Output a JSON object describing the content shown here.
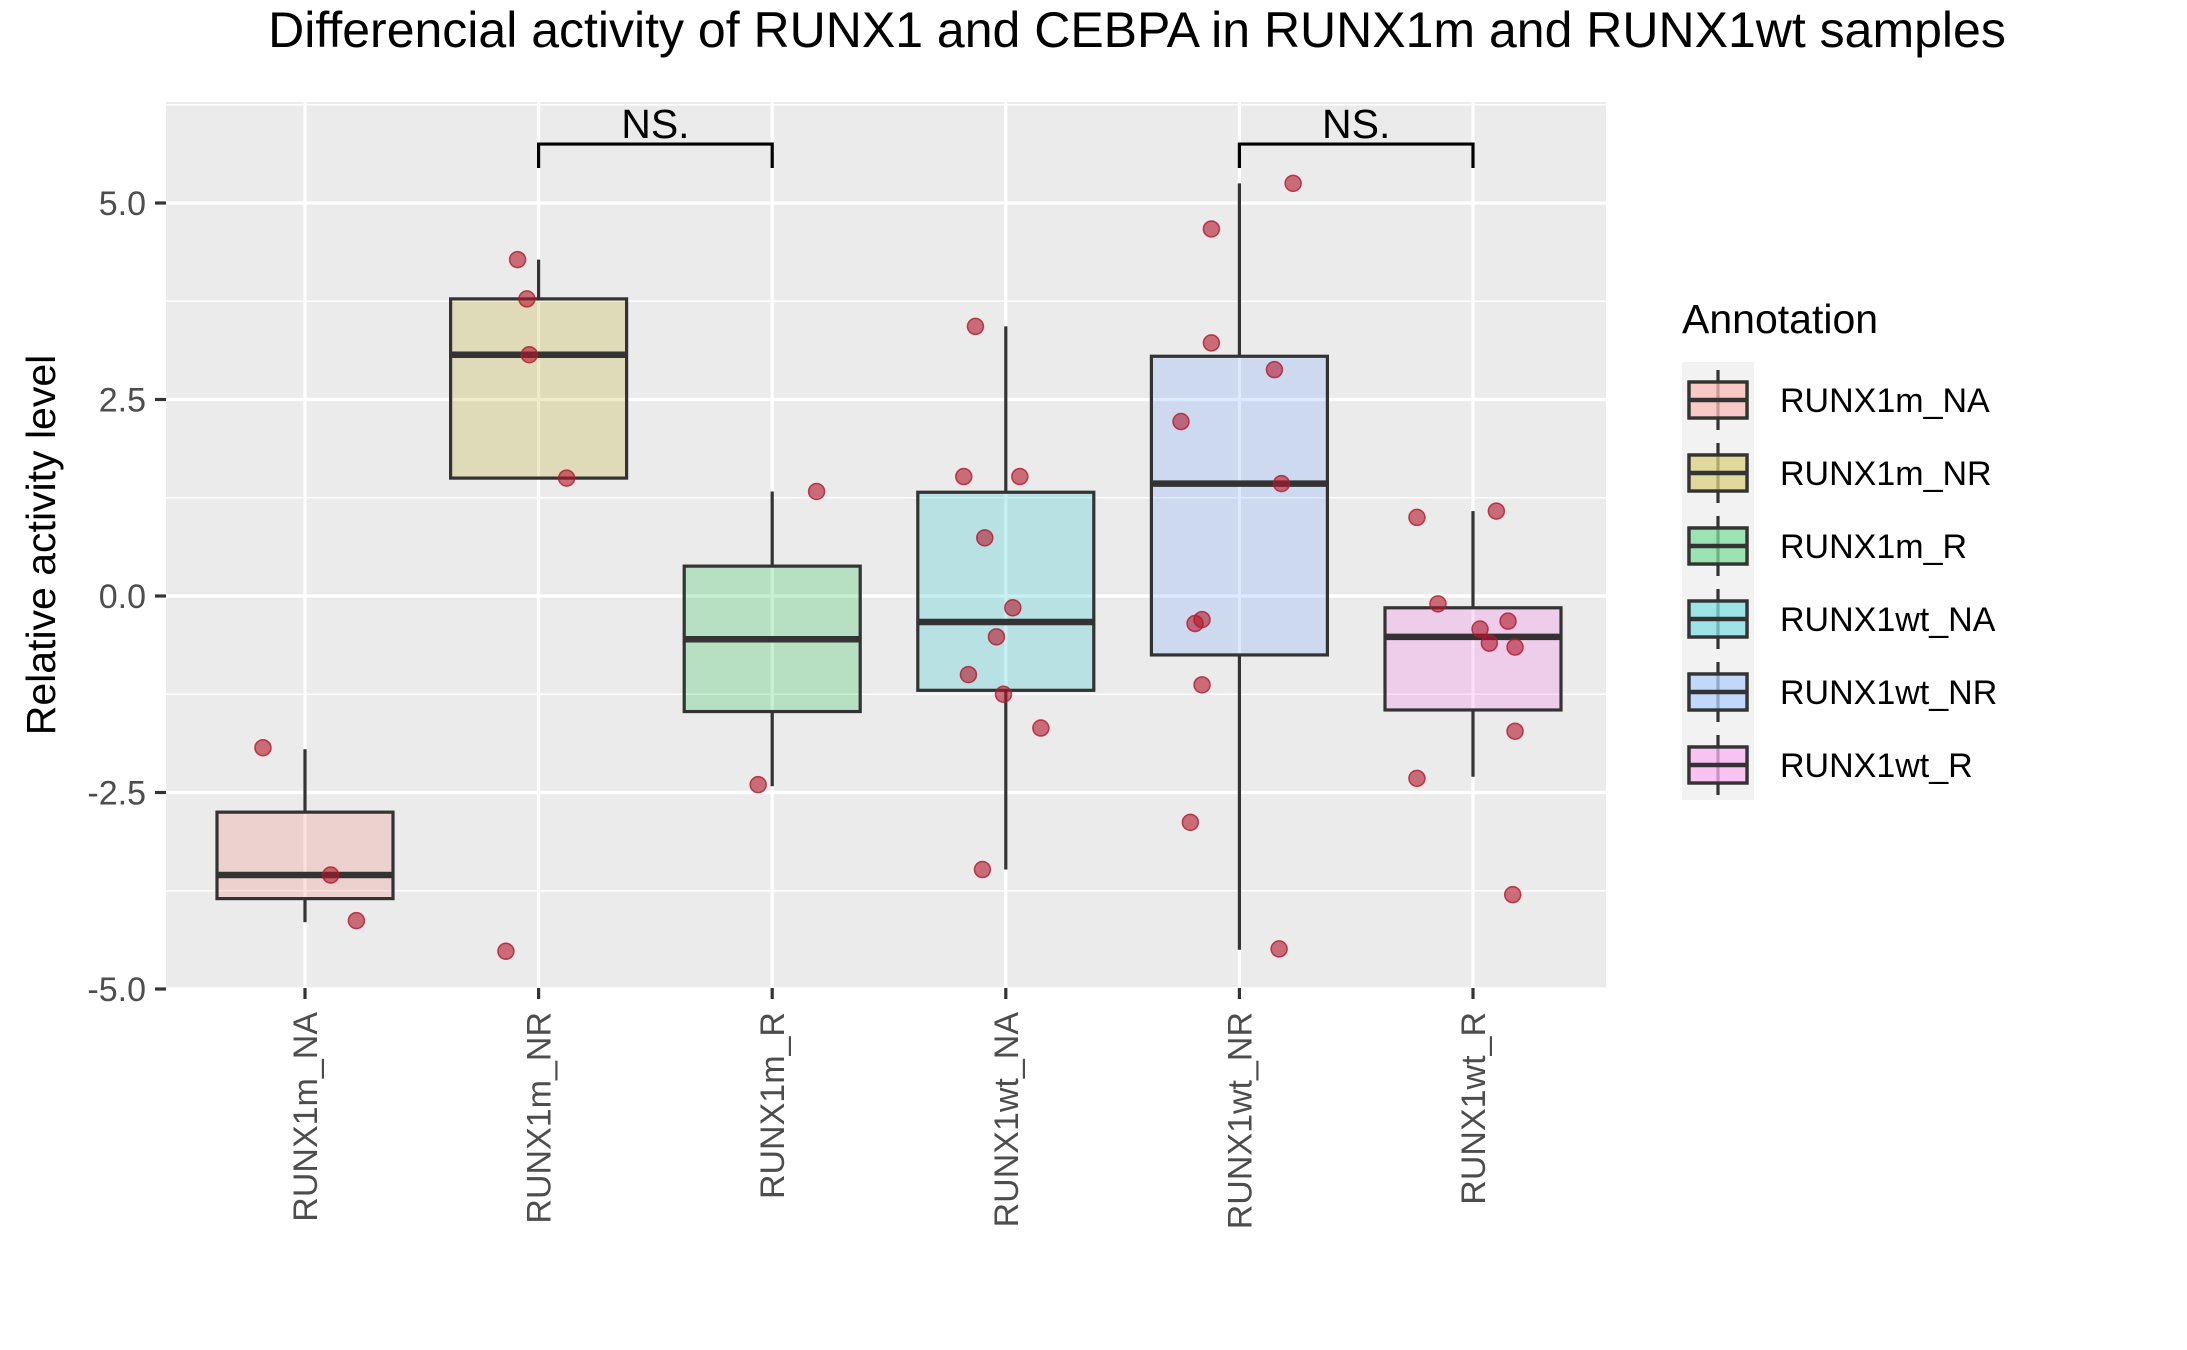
{
  "chart_data": {
    "type": "boxplot",
    "title": "Differencial activity of RUNX1 and CEBPA in RUNX1m and RUNX1wt samples",
    "xlabel": "",
    "ylabel": "Relative activity level",
    "ylim": [
      -5.0,
      6.3
    ],
    "yticks": [
      5.0,
      2.5,
      0.0,
      -2.5,
      -5.0
    ],
    "ytick_labels": [
      "5.0",
      "2.5",
      "0.0",
      "-2.5",
      "-5.0"
    ],
    "grid": true,
    "categories": [
      "RUNX1m_NA",
      "RUNX1m_NR",
      "RUNX1m_R",
      "RUNX1wt_NA",
      "RUNX1wt_NR",
      "RUNX1wt_R"
    ],
    "boxes": [
      {
        "category": "RUNX1m_NA",
        "whisker_low": -4.15,
        "q1": -3.85,
        "median": -3.55,
        "q3": -2.75,
        "whisker_high": -1.95,
        "fill": "#F8766D"
      },
      {
        "category": "RUNX1m_NR",
        "whisker_low": 1.5,
        "q1": 1.5,
        "median": 3.07,
        "q3": 3.78,
        "whisker_high": 4.28,
        "fill": "#B79F00"
      },
      {
        "category": "RUNX1m_R",
        "whisker_low": -2.42,
        "q1": -1.47,
        "median": -0.55,
        "q3": 0.38,
        "whisker_high": 1.33,
        "fill": "#00BA38"
      },
      {
        "category": "RUNX1wt_NA",
        "whisker_low": -3.48,
        "q1": -1.2,
        "median": -0.33,
        "q3": 1.32,
        "whisker_high": 3.43,
        "fill": "#00BFC4"
      },
      {
        "category": "RUNX1wt_NR",
        "whisker_low": -4.5,
        "q1": -0.75,
        "median": 1.43,
        "q3": 3.05,
        "whisker_high": 5.25,
        "fill": "#619CFF"
      },
      {
        "category": "RUNX1wt_R",
        "whisker_low": -2.3,
        "q1": -1.45,
        "median": -0.52,
        "q3": -0.15,
        "whisker_high": 1.08,
        "fill": "#F564E3"
      }
    ],
    "points": [
      {
        "category": "RUNX1m_NA",
        "jitter": -0.18,
        "y": -1.93
      },
      {
        "category": "RUNX1m_NA",
        "jitter": 0.11,
        "y": -3.55
      },
      {
        "category": "RUNX1m_NA",
        "jitter": 0.22,
        "y": -4.13
      },
      {
        "category": "RUNX1m_NR",
        "jitter": -0.09,
        "y": 4.28
      },
      {
        "category": "RUNX1m_NR",
        "jitter": -0.05,
        "y": 3.78
      },
      {
        "category": "RUNX1m_NR",
        "jitter": -0.04,
        "y": 3.07
      },
      {
        "category": "RUNX1m_NR",
        "jitter": 0.12,
        "y": 1.5
      },
      {
        "category": "RUNX1m_NR",
        "jitter": -0.14,
        "y": -4.52
      },
      {
        "category": "RUNX1m_R",
        "jitter": 0.19,
        "y": 1.33
      },
      {
        "category": "RUNX1m_R",
        "jitter": -0.06,
        "y": -2.4
      },
      {
        "category": "RUNX1wt_NA",
        "jitter": -0.13,
        "y": 3.43
      },
      {
        "category": "RUNX1wt_NA",
        "jitter": -0.18,
        "y": 1.52
      },
      {
        "category": "RUNX1wt_NA",
        "jitter": 0.06,
        "y": 1.52
      },
      {
        "category": "RUNX1wt_NA",
        "jitter": -0.09,
        "y": 0.74
      },
      {
        "category": "RUNX1wt_NA",
        "jitter": 0.03,
        "y": -0.15
      },
      {
        "category": "RUNX1wt_NA",
        "jitter": -0.04,
        "y": -0.52
      },
      {
        "category": "RUNX1wt_NA",
        "jitter": -0.16,
        "y": -1.0
      },
      {
        "category": "RUNX1wt_NA",
        "jitter": -0.01,
        "y": -1.25
      },
      {
        "category": "RUNX1wt_NA",
        "jitter": 0.15,
        "y": -1.68
      },
      {
        "category": "RUNX1wt_NA",
        "jitter": -0.1,
        "y": -3.48
      },
      {
        "category": "RUNX1wt_NR",
        "jitter": 0.23,
        "y": 5.25
      },
      {
        "category": "RUNX1wt_NR",
        "jitter": -0.12,
        "y": 4.67
      },
      {
        "category": "RUNX1wt_NR",
        "jitter": -0.12,
        "y": 3.22
      },
      {
        "category": "RUNX1wt_NR",
        "jitter": 0.15,
        "y": 2.88
      },
      {
        "category": "RUNX1wt_NR",
        "jitter": -0.25,
        "y": 2.22
      },
      {
        "category": "RUNX1wt_NR",
        "jitter": 0.18,
        "y": 1.43
      },
      {
        "category": "RUNX1wt_NR",
        "jitter": -0.19,
        "y": -0.35
      },
      {
        "category": "RUNX1wt_NR",
        "jitter": -0.16,
        "y": -0.3
      },
      {
        "category": "RUNX1wt_NR",
        "jitter": -0.16,
        "y": -1.13
      },
      {
        "category": "RUNX1wt_NR",
        "jitter": -0.21,
        "y": -2.88
      },
      {
        "category": "RUNX1wt_NR",
        "jitter": 0.17,
        "y": -4.49
      },
      {
        "category": "RUNX1wt_R",
        "jitter": -0.24,
        "y": 1.0
      },
      {
        "category": "RUNX1wt_R",
        "jitter": 0.1,
        "y": 1.08
      },
      {
        "category": "RUNX1wt_R",
        "jitter": -0.15,
        "y": -0.1
      },
      {
        "category": "RUNX1wt_R",
        "jitter": 0.03,
        "y": -0.42
      },
      {
        "category": "RUNX1wt_R",
        "jitter": 0.07,
        "y": -0.6
      },
      {
        "category": "RUNX1wt_R",
        "jitter": 0.15,
        "y": -0.32
      },
      {
        "category": "RUNX1wt_R",
        "jitter": 0.18,
        "y": -0.65
      },
      {
        "category": "RUNX1wt_R",
        "jitter": 0.18,
        "y": -1.72
      },
      {
        "category": "RUNX1wt_R",
        "jitter": -0.24,
        "y": -2.32
      },
      {
        "category": "RUNX1wt_R",
        "jitter": 0.17,
        "y": -3.8
      }
    ],
    "point_color": "#B2182B",
    "significance": [
      {
        "from": "RUNX1m_NR",
        "to": "RUNX1m_R",
        "y": 5.75,
        "label": "NS."
      },
      {
        "from": "RUNX1wt_NR",
        "to": "RUNX1wt_R",
        "y": 5.75,
        "label": "NS."
      }
    ],
    "legend": {
      "title": "Annotation",
      "position": "right",
      "items": [
        "RUNX1m_NA",
        "RUNX1m_NR",
        "RUNX1m_R",
        "RUNX1wt_NA",
        "RUNX1wt_NR",
        "RUNX1wt_R"
      ]
    }
  }
}
